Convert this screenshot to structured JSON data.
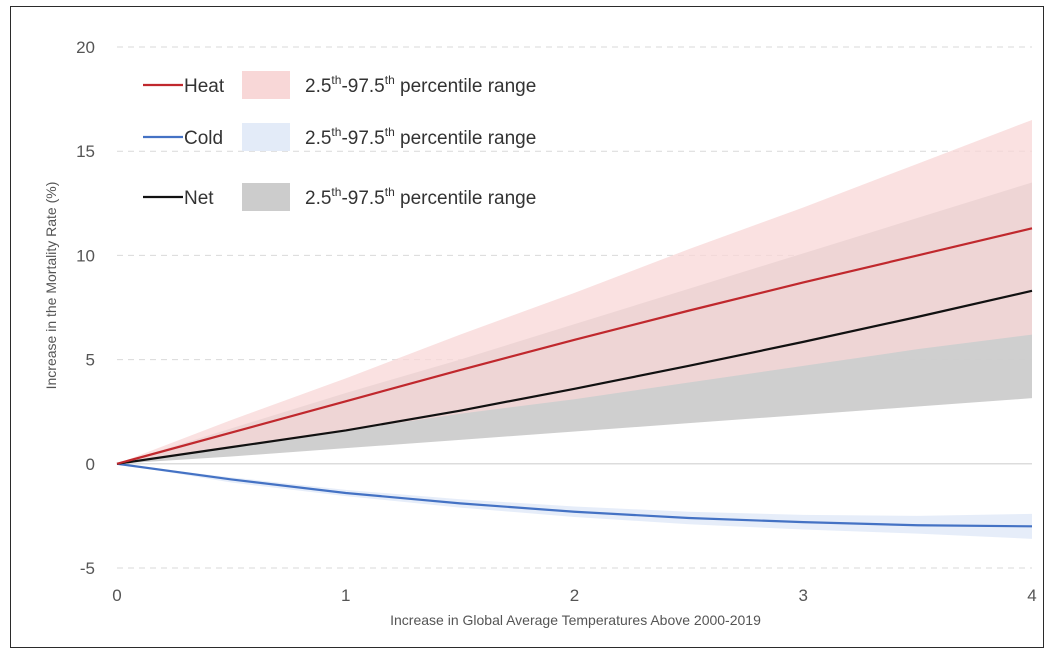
{
  "chart_data": {
    "type": "line",
    "title": "",
    "xlabel": "Increase in Global Average Temperatures Above 2000-2019",
    "ylabel": "Increase in the Mortality Rate (%)",
    "xlim": [
      0,
      4
    ],
    "ylim": [
      -5,
      20
    ],
    "xticks": [
      0,
      1,
      2,
      3,
      4
    ],
    "yticks": [
      -5,
      0,
      5,
      10,
      15,
      20
    ],
    "grid": "horizontal dashed",
    "legend_position": "top-left",
    "x": [
      0,
      0.5,
      1,
      1.5,
      2,
      2.5,
      3,
      3.5,
      4
    ],
    "series": [
      {
        "name": "Heat",
        "color": "#c0282d",
        "band_color": "#f8d7d7",
        "band_label": "2.5th-97.5th percentile range",
        "values": [
          0,
          1.5,
          3.0,
          4.5,
          5.95,
          7.35,
          8.7,
          10.0,
          11.3
        ],
        "lower": [
          0,
          0.8,
          1.6,
          2.4,
          3.1,
          3.9,
          4.7,
          5.5,
          6.2
        ],
        "upper": [
          0,
          2.1,
          4.1,
          6.2,
          8.2,
          10.3,
          12.3,
          14.4,
          16.5
        ]
      },
      {
        "name": "Cold",
        "color": "#4472c4",
        "band_color": "#e3ebf8",
        "band_label": "2.5th-97.5th percentile range",
        "values": [
          0,
          -0.75,
          -1.4,
          -1.9,
          -2.3,
          -2.6,
          -2.8,
          -2.95,
          -3.0
        ],
        "lower": [
          0,
          -0.9,
          -1.55,
          -2.1,
          -2.55,
          -2.9,
          -3.15,
          -3.35,
          -3.6
        ],
        "upper": [
          0,
          -0.65,
          -1.25,
          -1.7,
          -2.05,
          -2.3,
          -2.45,
          -2.5,
          -2.4
        ]
      },
      {
        "name": "Net",
        "color": "#111111",
        "band_color": "#cccccc",
        "band_label": "2.5th-97.5th percentile range",
        "values": [
          0,
          0.8,
          1.6,
          2.55,
          3.6,
          4.7,
          5.85,
          7.05,
          8.3
        ],
        "lower": [
          0,
          0.35,
          0.75,
          1.15,
          1.55,
          1.95,
          2.35,
          2.75,
          3.15
        ],
        "upper": [
          0,
          1.7,
          3.4,
          5.0,
          6.7,
          8.4,
          10.1,
          11.8,
          13.5
        ]
      }
    ]
  }
}
